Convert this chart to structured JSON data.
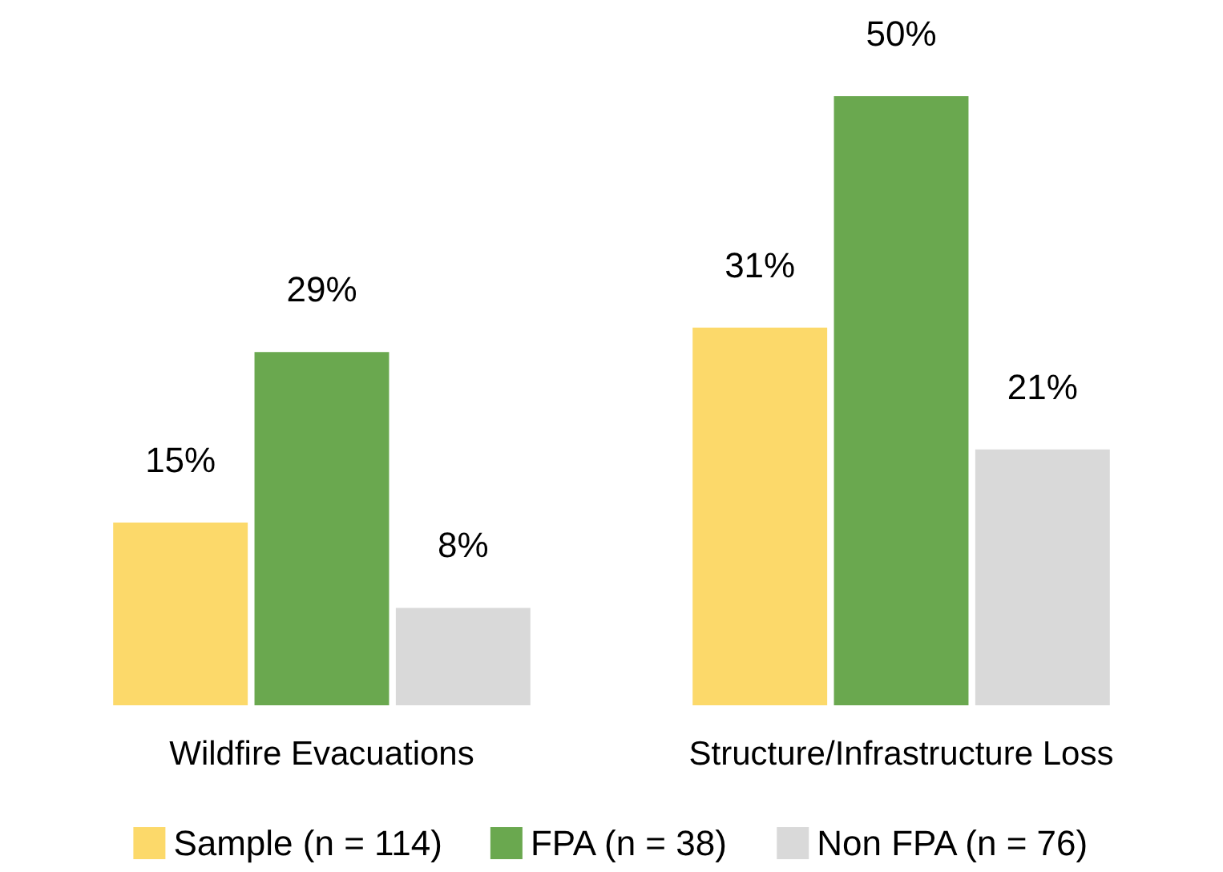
{
  "chart_data": {
    "type": "bar",
    "categories": [
      "Wildfire Evacuations",
      "Structure/Infrastructure Loss"
    ],
    "series": [
      {
        "name": "Sample (n = 114)",
        "color": "#fcd96a",
        "values": [
          15,
          31
        ],
        "value_labels": [
          "15%",
          "31%"
        ]
      },
      {
        "name": "FPA (n = 38)",
        "color": "#6aa84f",
        "values": [
          29,
          50
        ],
        "value_labels": [
          "29%",
          "50%"
        ]
      },
      {
        "name": "Non FPA (n = 76)",
        "color": "#d9d9d9",
        "values": [
          8,
          21
        ],
        "value_labels": [
          "8%",
          "21%"
        ]
      }
    ],
    "legend": "bottom"
  }
}
